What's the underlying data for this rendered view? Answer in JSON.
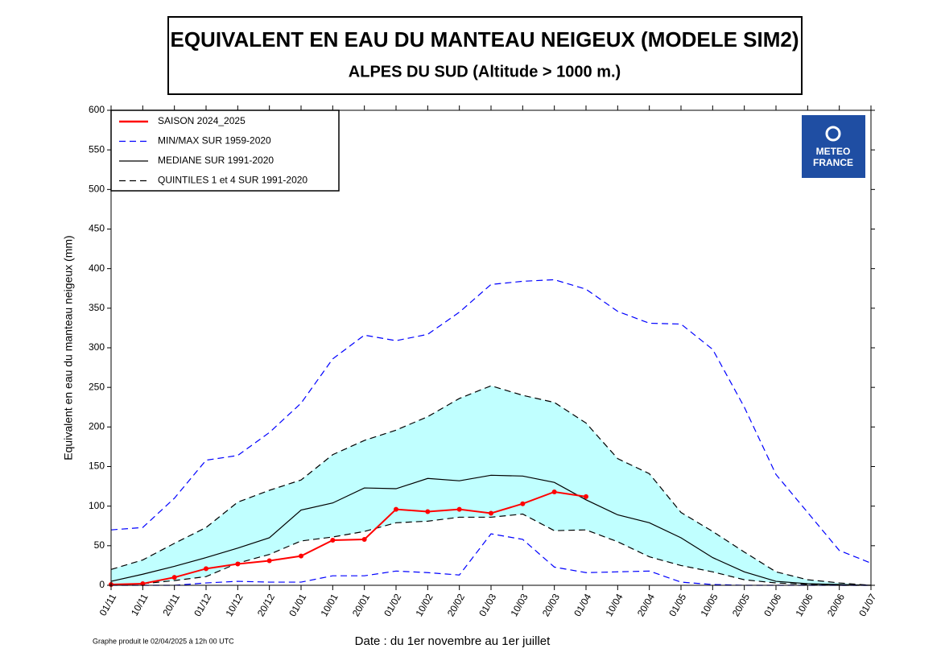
{
  "chart_data": {
    "type": "line",
    "title": "EQUIVALENT EN EAU DU MANTEAU NEIGEUX (MODELE SIM2)",
    "subtitle": "ALPES DU SUD (Altitude > 1000 m.)",
    "xlabel": "Date : du 1er novembre au 1er juillet",
    "ylabel": "Equivalent en eau du manteau neigeux (mm)",
    "footnote": "Graphe produit le 02/04/2025 à 12h 00 UTC",
    "logo": [
      "METEO",
      "FRANCE"
    ],
    "categories": [
      "01/11",
      "10/11",
      "20/11",
      "01/12",
      "10/12",
      "20/12",
      "01/01",
      "10/01",
      "20/01",
      "01/02",
      "10/02",
      "20/02",
      "01/03",
      "10/03",
      "20/03",
      "01/04",
      "10/04",
      "20/04",
      "01/05",
      "10/05",
      "20/05",
      "01/06",
      "10/06",
      "20/06",
      "01/07"
    ],
    "ylim": [
      0,
      600
    ],
    "yticks": [
      0,
      50,
      100,
      150,
      200,
      250,
      300,
      350,
      400,
      450,
      500,
      550,
      600
    ],
    "legend": "upper left",
    "series": [
      {
        "name": "SAISON 2024_2025",
        "color": "#ff0000",
        "line_style": "solid",
        "markers": true,
        "values": [
          1,
          2,
          10,
          21,
          27,
          31,
          37,
          57,
          58,
          96,
          93,
          96,
          91,
          103,
          118,
          112,
          null,
          null,
          null,
          null,
          null,
          null,
          null,
          null,
          null
        ]
      },
      {
        "name": "MIN/MAX SUR 1959-2020",
        "color": "#0000ff",
        "line_style": "dashed",
        "values": [
          70,
          73,
          110,
          158,
          164,
          193,
          230,
          286,
          316,
          309,
          317,
          345,
          380,
          384,
          386,
          374,
          346,
          331,
          330,
          298,
          225,
          140,
          92,
          44,
          28
        ],
        "lower": [
          0,
          0,
          0,
          3,
          5,
          4,
          4,
          12,
          12,
          18,
          16,
          13,
          65,
          58,
          23,
          16,
          17,
          18,
          4,
          1,
          0,
          0,
          0,
          0,
          0
        ]
      },
      {
        "name": "MEDIANE SUR 1991-2020",
        "color": "#000000",
        "line_style": "solid",
        "values": [
          5,
          14,
          24,
          35,
          47,
          60,
          95,
          104,
          123,
          122,
          135,
          132,
          139,
          138,
          130,
          108,
          89,
          79,
          60,
          35,
          17,
          5,
          2,
          1,
          0
        ]
      },
      {
        "name": "QUINTILES 1 et 4 SUR 1991-2020",
        "color": "#000000",
        "line_style": "dashed",
        "fill": "#c0ffff",
        "values": [
          20,
          32,
          53,
          73,
          105,
          120,
          133,
          165,
          183,
          196,
          213,
          236,
          252,
          240,
          231,
          205,
          160,
          141,
          92,
          68,
          42,
          17,
          7,
          3,
          0
        ],
        "lower": [
          0,
          2,
          6,
          11,
          28,
          39,
          56,
          61,
          68,
          79,
          81,
          86,
          86,
          90,
          69,
          70,
          55,
          36,
          25,
          17,
          7,
          3,
          1,
          0,
          0
        ]
      }
    ]
  }
}
